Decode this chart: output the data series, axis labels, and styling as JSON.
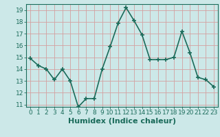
{
  "x": [
    0,
    1,
    2,
    3,
    4,
    5,
    6,
    7,
    8,
    9,
    10,
    11,
    12,
    13,
    14,
    15,
    16,
    17,
    18,
    19,
    20,
    21,
    22,
    23
  ],
  "y": [
    14.9,
    14.3,
    14.0,
    13.1,
    14.0,
    13.0,
    10.8,
    11.5,
    11.5,
    14.0,
    15.9,
    17.9,
    19.2,
    18.1,
    16.9,
    14.8,
    14.8,
    14.8,
    15.0,
    17.2,
    15.4,
    13.3,
    13.1,
    12.5
  ],
  "line_color": "#1a6b5a",
  "marker": "+",
  "marker_size": 4,
  "marker_linewidth": 1.2,
  "bg_color": "#cce8e8",
  "grid_color": "#d4a0a0",
  "xlabel": "Humidex (Indice chaleur)",
  "ylabel": "",
  "xlim": [
    -0.5,
    23.5
  ],
  "ylim": [
    10.8,
    19.5
  ],
  "yticks": [
    11,
    12,
    13,
    14,
    15,
    16,
    17,
    18,
    19
  ],
  "xticks": [
    0,
    1,
    2,
    3,
    4,
    5,
    6,
    7,
    8,
    9,
    10,
    11,
    12,
    13,
    14,
    15,
    16,
    17,
    18,
    19,
    20,
    21,
    22,
    23
  ],
  "xtick_labels": [
    "0",
    "1",
    "2",
    "3",
    "4",
    "5",
    "6",
    "7",
    "8",
    "9",
    "10",
    "11",
    "12",
    "13",
    "14",
    "15",
    "16",
    "17",
    "18",
    "19",
    "20",
    "21",
    "22",
    "23"
  ],
  "tick_color": "#1a6b5a",
  "axis_color": "#1a6b5a",
  "xlabel_fontsize": 8,
  "tick_fontsize": 6.5,
  "linewidth": 1.2
}
